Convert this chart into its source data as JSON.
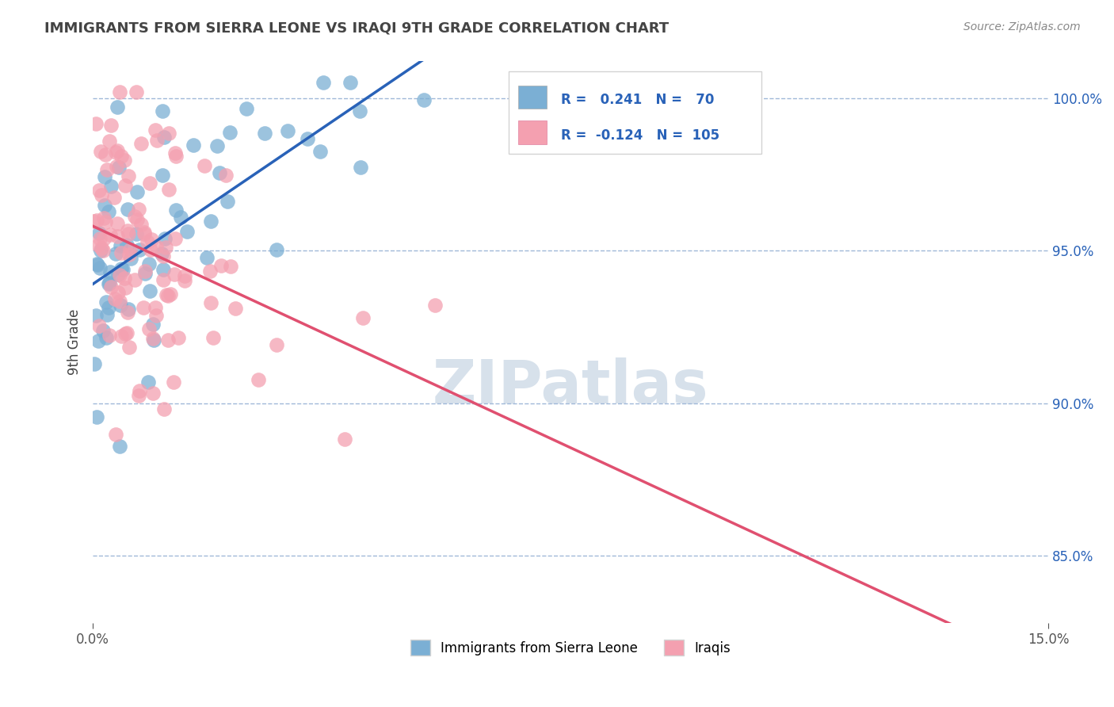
{
  "title": "IMMIGRANTS FROM SIERRA LEONE VS IRAQI 9TH GRADE CORRELATION CHART",
  "source_text": "Source: ZipAtlas.com",
  "xlabel": "",
  "ylabel": "9th Grade",
  "xlim": [
    0.0,
    0.15
  ],
  "ylim": [
    0.828,
    1.012
  ],
  "yticks": [
    0.85,
    0.9,
    0.95,
    1.0
  ],
  "ytick_labels": [
    "85.0%",
    "90.0%",
    "95.0%",
    "100.0%"
  ],
  "xticks": [
    0.0,
    0.15
  ],
  "xtick_labels": [
    "0.0%",
    "15.0%"
  ],
  "legend1_label": "Immigrants from Sierra Leone",
  "legend2_label": "Iraqis",
  "r1": 0.241,
  "n1": 70,
  "r2": -0.124,
  "n2": 105,
  "blue_color": "#7bafd4",
  "pink_color": "#f4a0b0",
  "blue_line_color": "#2962b8",
  "pink_line_color": "#e05070",
  "dashed_line_color": "#a0b8d8",
  "background_color": "#ffffff",
  "watermark_color": "#d0dce8"
}
